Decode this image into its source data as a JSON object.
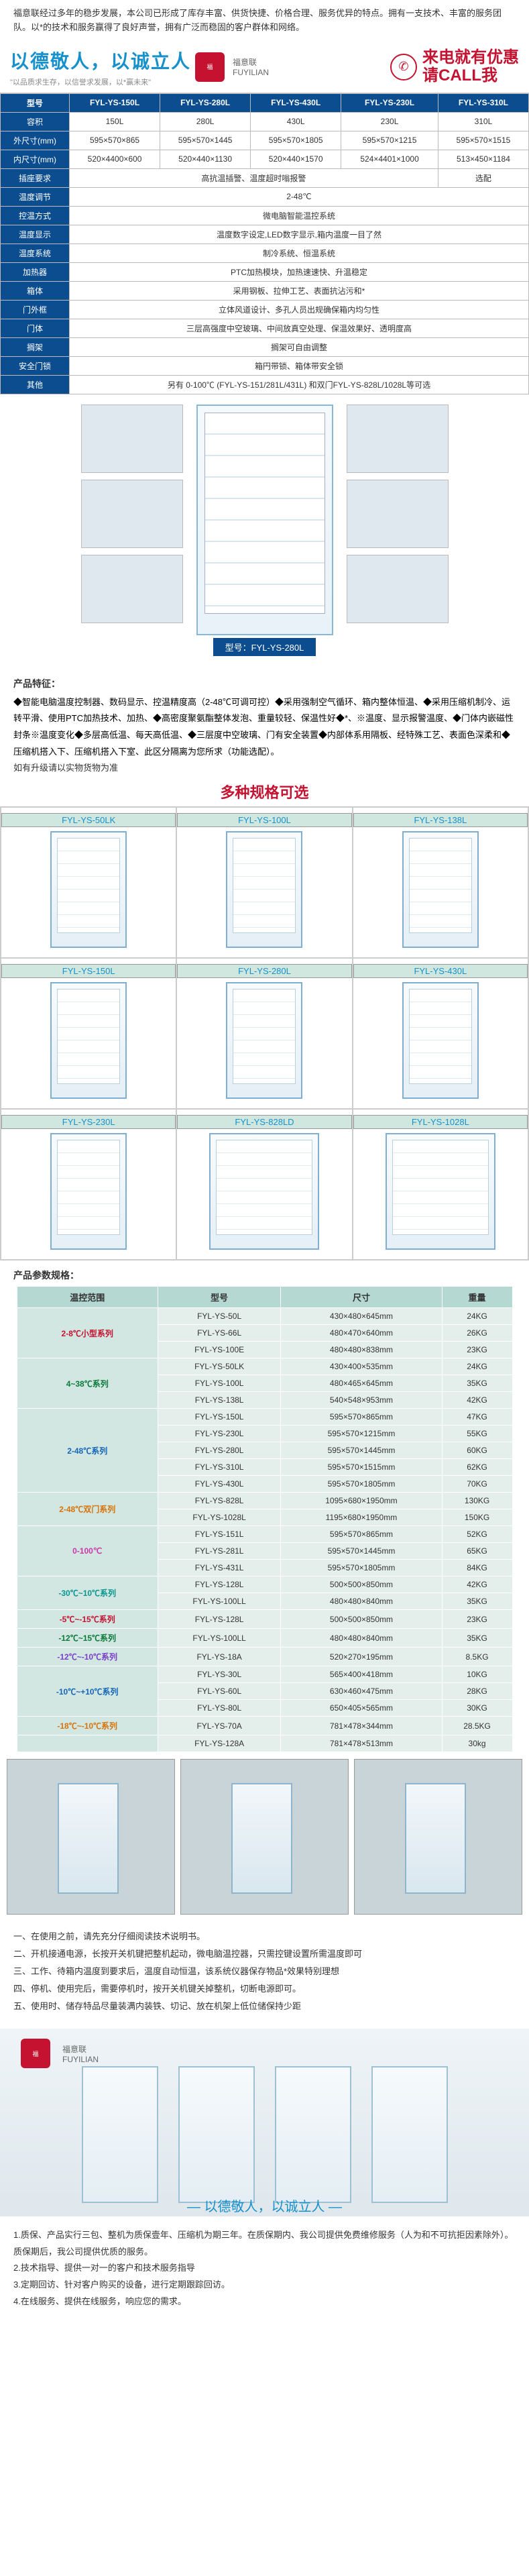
{
  "intro": "福意联经过多年的稳步发展，本公司已形成了库存丰富、供货快捷、价格合理、服务优异的特点。拥有一支技术、丰富的服务团队。以*的技术和服务赢得了良好声誉，拥有广泛而稳固的客户群体和网络。",
  "banner": {
    "slogan": "以德敬人，以诚立人",
    "sub": "\"以品质求生存，以信誉求发展，以*赢未来\"",
    "brand_cn": "福意联",
    "brand_en": "FUYILIAN",
    "call1": "来电就有优惠",
    "call2": "请CALL我"
  },
  "spec": {
    "headers": [
      "型号",
      "FYL-YS-150L",
      "FYL-YS-280L",
      "FYL-YS-430L",
      "FYL-YS-230L",
      "FYL-YS-310L"
    ],
    "rows": [
      {
        "label": "容积",
        "cells": [
          "150L",
          "280L",
          "430L",
          "230L",
          "310L"
        ]
      },
      {
        "label": "外尺寸(mm)",
        "cells": [
          "595×570×865",
          "595×570×1445",
          "595×570×1805",
          "595×570×1215",
          "595×570×1515"
        ]
      },
      {
        "label": "内尺寸(mm)",
        "cells": [
          "520×4400×600",
          "520×440×1130",
          "520×440×1570",
          "524×4401×1000",
          "513×450×1184"
        ]
      },
      {
        "label": "插座要求",
        "cells": [
          {
            "span": 4,
            "text": "高抗温插警、温度超时嗡报警"
          },
          {
            "span": 1,
            "text": "选配"
          }
        ]
      },
      {
        "label": "温度调节",
        "cells": [
          {
            "span": 5,
            "text": "2-48℃"
          }
        ]
      },
      {
        "label": "控温方式",
        "cells": [
          {
            "span": 5,
            "text": "微电脑智能温控系统"
          }
        ]
      },
      {
        "label": "温度显示",
        "cells": [
          {
            "span": 5,
            "text": "温度数字设定,LED数字显示,箱内温度一目了然"
          }
        ]
      },
      {
        "label": "温度系统",
        "cells": [
          {
            "span": 5,
            "text": "制冷系统、恒温系统"
          }
        ]
      },
      {
        "label": "加热器",
        "cells": [
          {
            "span": 5,
            "text": "PTC加热模块，加热速速快、升温稳定"
          }
        ]
      },
      {
        "label": "箱体",
        "cells": [
          {
            "span": 5,
            "text": "采用钢板、拉伸工艺、表面抗沾污和*"
          }
        ]
      },
      {
        "label": "门外框",
        "cells": [
          {
            "span": 5,
            "text": "立体风道设计、多孔人员出规确保箱内均匀性"
          }
        ]
      },
      {
        "label": "门体",
        "cells": [
          {
            "span": 5,
            "text": "三层高强度中空玻璃、中间放真空处理、保温效果好、透明度高"
          }
        ]
      },
      {
        "label": "搁架",
        "cells": [
          {
            "span": 5,
            "text": "搁架可自由调整"
          }
        ]
      },
      {
        "label": "安全门锁",
        "cells": [
          {
            "span": 5,
            "text": "箱円带锁、箱体带安全锁"
          }
        ]
      },
      {
        "label": "其他",
        "cells": [
          {
            "span": 5,
            "text": "另有 0-100℃ (FYL-YS-151/281L/431L) 和双门FYL-YS-828L/1028L等可选"
          }
        ]
      }
    ]
  },
  "hero_model": "型号：FYL-YS-280L",
  "feat_title": "产品特征：",
  "features": [
    "◆智能电脑温度控制器、数码显示、控温精度高（2-48℃可调可控）◆采用强制空气循环、箱内整体恒温、◆采用压缩机制冷、运转平滑、使用PTC加热技术、加热、◆高密度聚氨酯整体发泡、重量较轻、保温性好◆*、※温度、显示报警温度、◆门体内嵌磁性封条※温度变化◆多层高低温、每天高低温、◆三层度中空玻璃、门有安全装置◆内部体系用隔板、经特殊工艺、表面色深柔和◆压缩机搭入下、压缩机搭入下室、此区分隔离为您所求（功能选配）。"
  ],
  "feat_note": "如有升级请以实物货物为准",
  "variants_title": "多种规格可选",
  "variants": [
    [
      "FYL-YS-50LK",
      "FYL-YS-100L",
      "FYL-YS-138L"
    ],
    [
      "FYL-YS-150L",
      "FYL-YS-280L",
      "FYL-YS-430L"
    ],
    [
      "FYL-YS-230L",
      "FYL-YS-828LD",
      "FYL-YS-1028L"
    ]
  ],
  "param_title": "产品参数规格：",
  "param_headers": [
    "温控范围",
    "型号",
    "尺寸",
    "重量"
  ],
  "param_groups": [
    {
      "range": "2-8℃小型系列",
      "cls": "c-red",
      "rows": [
        [
          "FYL-YS-50L",
          "430×480×645mm",
          "24KG"
        ],
        [
          "FYL-YS-66L",
          "480×470×640mm",
          "26KG"
        ],
        [
          "FYL-YS-100E",
          "480×480×838mm",
          "23KG"
        ]
      ]
    },
    {
      "range": "4~38℃系列",
      "cls": "c-green",
      "rows": [
        [
          "FYL-YS-50LK",
          "430×400×535mm",
          "24KG"
        ],
        [
          "FYL-YS-100L",
          "480×465×645mm",
          "35KG"
        ],
        [
          "FYL-YS-138L",
          "540×548×953mm",
          "42KG"
        ]
      ]
    },
    {
      "range": "2-48℃系列",
      "cls": "c-blue",
      "rows": [
        [
          "FYL-YS-150L",
          "595×570×865mm",
          "47KG"
        ],
        [
          "FYL-YS-230L",
          "595×570×1215mm",
          "55KG"
        ],
        [
          "FYL-YS-280L",
          "595×570×1445mm",
          "60KG"
        ],
        [
          "FYL-YS-310L",
          "595×570×1515mm",
          "62KG"
        ],
        [
          "FYL-YS-430L",
          "595×570×1805mm",
          "70KG"
        ]
      ]
    },
    {
      "range": "2-48℃双门系列",
      "cls": "c-orange",
      "rows": [
        [
          "FYL-YS-828L",
          "1095×680×1950mm",
          "130KG"
        ],
        [
          "FYL-YS-1028L",
          "1195×680×1950mm",
          "150KG"
        ]
      ]
    },
    {
      "range": "0-100℃",
      "cls": "c-pink",
      "rows": [
        [
          "FYL-YS-151L",
          "595×570×865mm",
          "52KG"
        ],
        [
          "FYL-YS-281L",
          "595×570×1445mm",
          "65KG"
        ],
        [
          "FYL-YS-431L",
          "595×570×1805mm",
          "84KG"
        ]
      ]
    },
    {
      "range": "-30℃~10℃系列",
      "cls": "c-teal",
      "rows": [
        [
          "FYL-YS-128L",
          "500×500×850mm",
          "42KG"
        ],
        [
          "FYL-YS-100LL",
          "480×480×840mm",
          "35KG"
        ]
      ]
    },
    {
      "range": "-5℃~-15℃系列",
      "cls": "c-red",
      "rows": [
        [
          "FYL-YS-128L",
          "500×500×850mm",
          "23KG"
        ]
      ]
    },
    {
      "range": "-12℃~15℃系列",
      "cls": "c-green",
      "rows": [
        [
          "FYL-YS-100LL",
          "480×480×840mm",
          "35KG"
        ]
      ]
    },
    {
      "range": "-12℃~-10℃系列",
      "cls": "c-purple",
      "rows": [
        [
          "FYL-YS-18A",
          "520×270×195mm",
          "8.5KG"
        ]
      ]
    },
    {
      "range": "-10℃~+10℃系列",
      "cls": "c-blue",
      "rows": [
        [
          "FYL-YS-30L",
          "565×400×418mm",
          "10KG"
        ],
        [
          "FYL-YS-60L",
          "630×460×475mm",
          "28KG"
        ],
        [
          "FYL-YS-80L",
          "650×405×565mm",
          "30KG"
        ]
      ]
    },
    {
      "range": "-18℃~-10℃系列",
      "cls": "c-orange",
      "rows": [
        [
          "FYL-YS-70A",
          "781×478×344mm",
          "28.5KG"
        ]
      ]
    },
    {
      "range": "",
      "cls": "",
      "rows": [
        [
          "FYL-YS-128A",
          "781×478×513mm",
          "30kg"
        ]
      ]
    }
  ],
  "steps_title_rows": [
    "一、在使用之前，请先充分仔细阅读技术说明书。",
    "二、开机接通电源，长按开关机键把整机起动，微电脑温控器，只需控键设置所需温度即可",
    "三、工作、待箱内温度到要求后，温度自动恒温，该系统仪器保存物品*效果特别理想",
    "四、停机、使用完后，需要停机时，按开关机键关掉整机，切断电源即可。",
    "五、使用时、储存特品尽量装满内装铁、切记、放在机架上低位储保持少距"
  ],
  "footer_slogan": "— 以德敬人，以诚立人 —",
  "svc": [
    "1.质保、产品实行三包、整机为质保壹年、压缩机为期三年。在质保期内、我公司提供免费维修服务（人为和不可抗拒因素除外）。质保期后，我公司提供优质的服务。",
    "2.技术指导、提供一对一的客户和技术服务指导",
    "3.定期回访、针对客户购买的设备，进行定期跟踪回访。",
    "4.在线服务、提供在线服务，响应您的需求。"
  ]
}
